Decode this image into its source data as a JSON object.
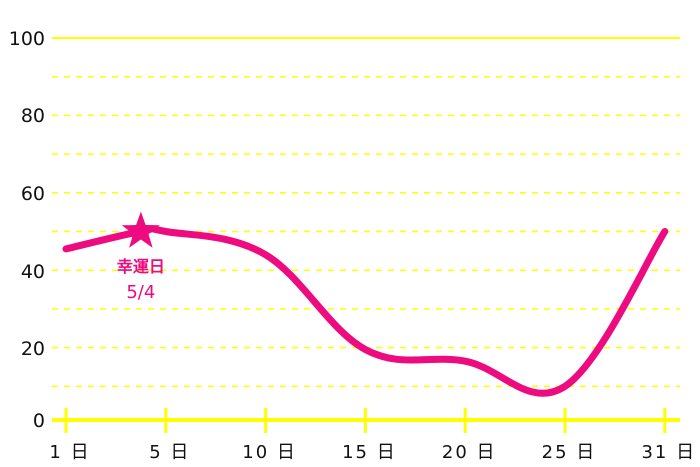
{
  "chart_data": {
    "type": "line",
    "title": "",
    "xlabel": "",
    "ylabel": "",
    "ylim": [
      0,
      100
    ],
    "y_ticks": [
      "0",
      "20",
      "40",
      "60",
      "80",
      "100"
    ],
    "x_ticks": [
      {
        "day": 1,
        "label": "1 日"
      },
      {
        "day": 5,
        "label": "5 日"
      },
      {
        "day": 10,
        "label": "10 日"
      },
      {
        "day": 15,
        "label": "15 日"
      },
      {
        "day": 20,
        "label": "20 日"
      },
      {
        "day": 25,
        "label": "25 日"
      },
      {
        "day": 31,
        "label": "31 日"
      }
    ],
    "grid": true,
    "series": [
      {
        "x": [
          1,
          4,
          5,
          10,
          15,
          20,
          25,
          31
        ],
        "y": [
          45.5,
          50,
          50,
          44,
          19.5,
          16.5,
          10,
          50
        ]
      }
    ],
    "annotation": {
      "day": 4,
      "value": 50,
      "marker": "star-icon",
      "label_line1": "幸運日",
      "label_line2": "5/4"
    },
    "colors": {
      "line": "#ee0a7f",
      "grid": "#ffff00",
      "axis": "#ffff00",
      "text": "#111111"
    }
  }
}
